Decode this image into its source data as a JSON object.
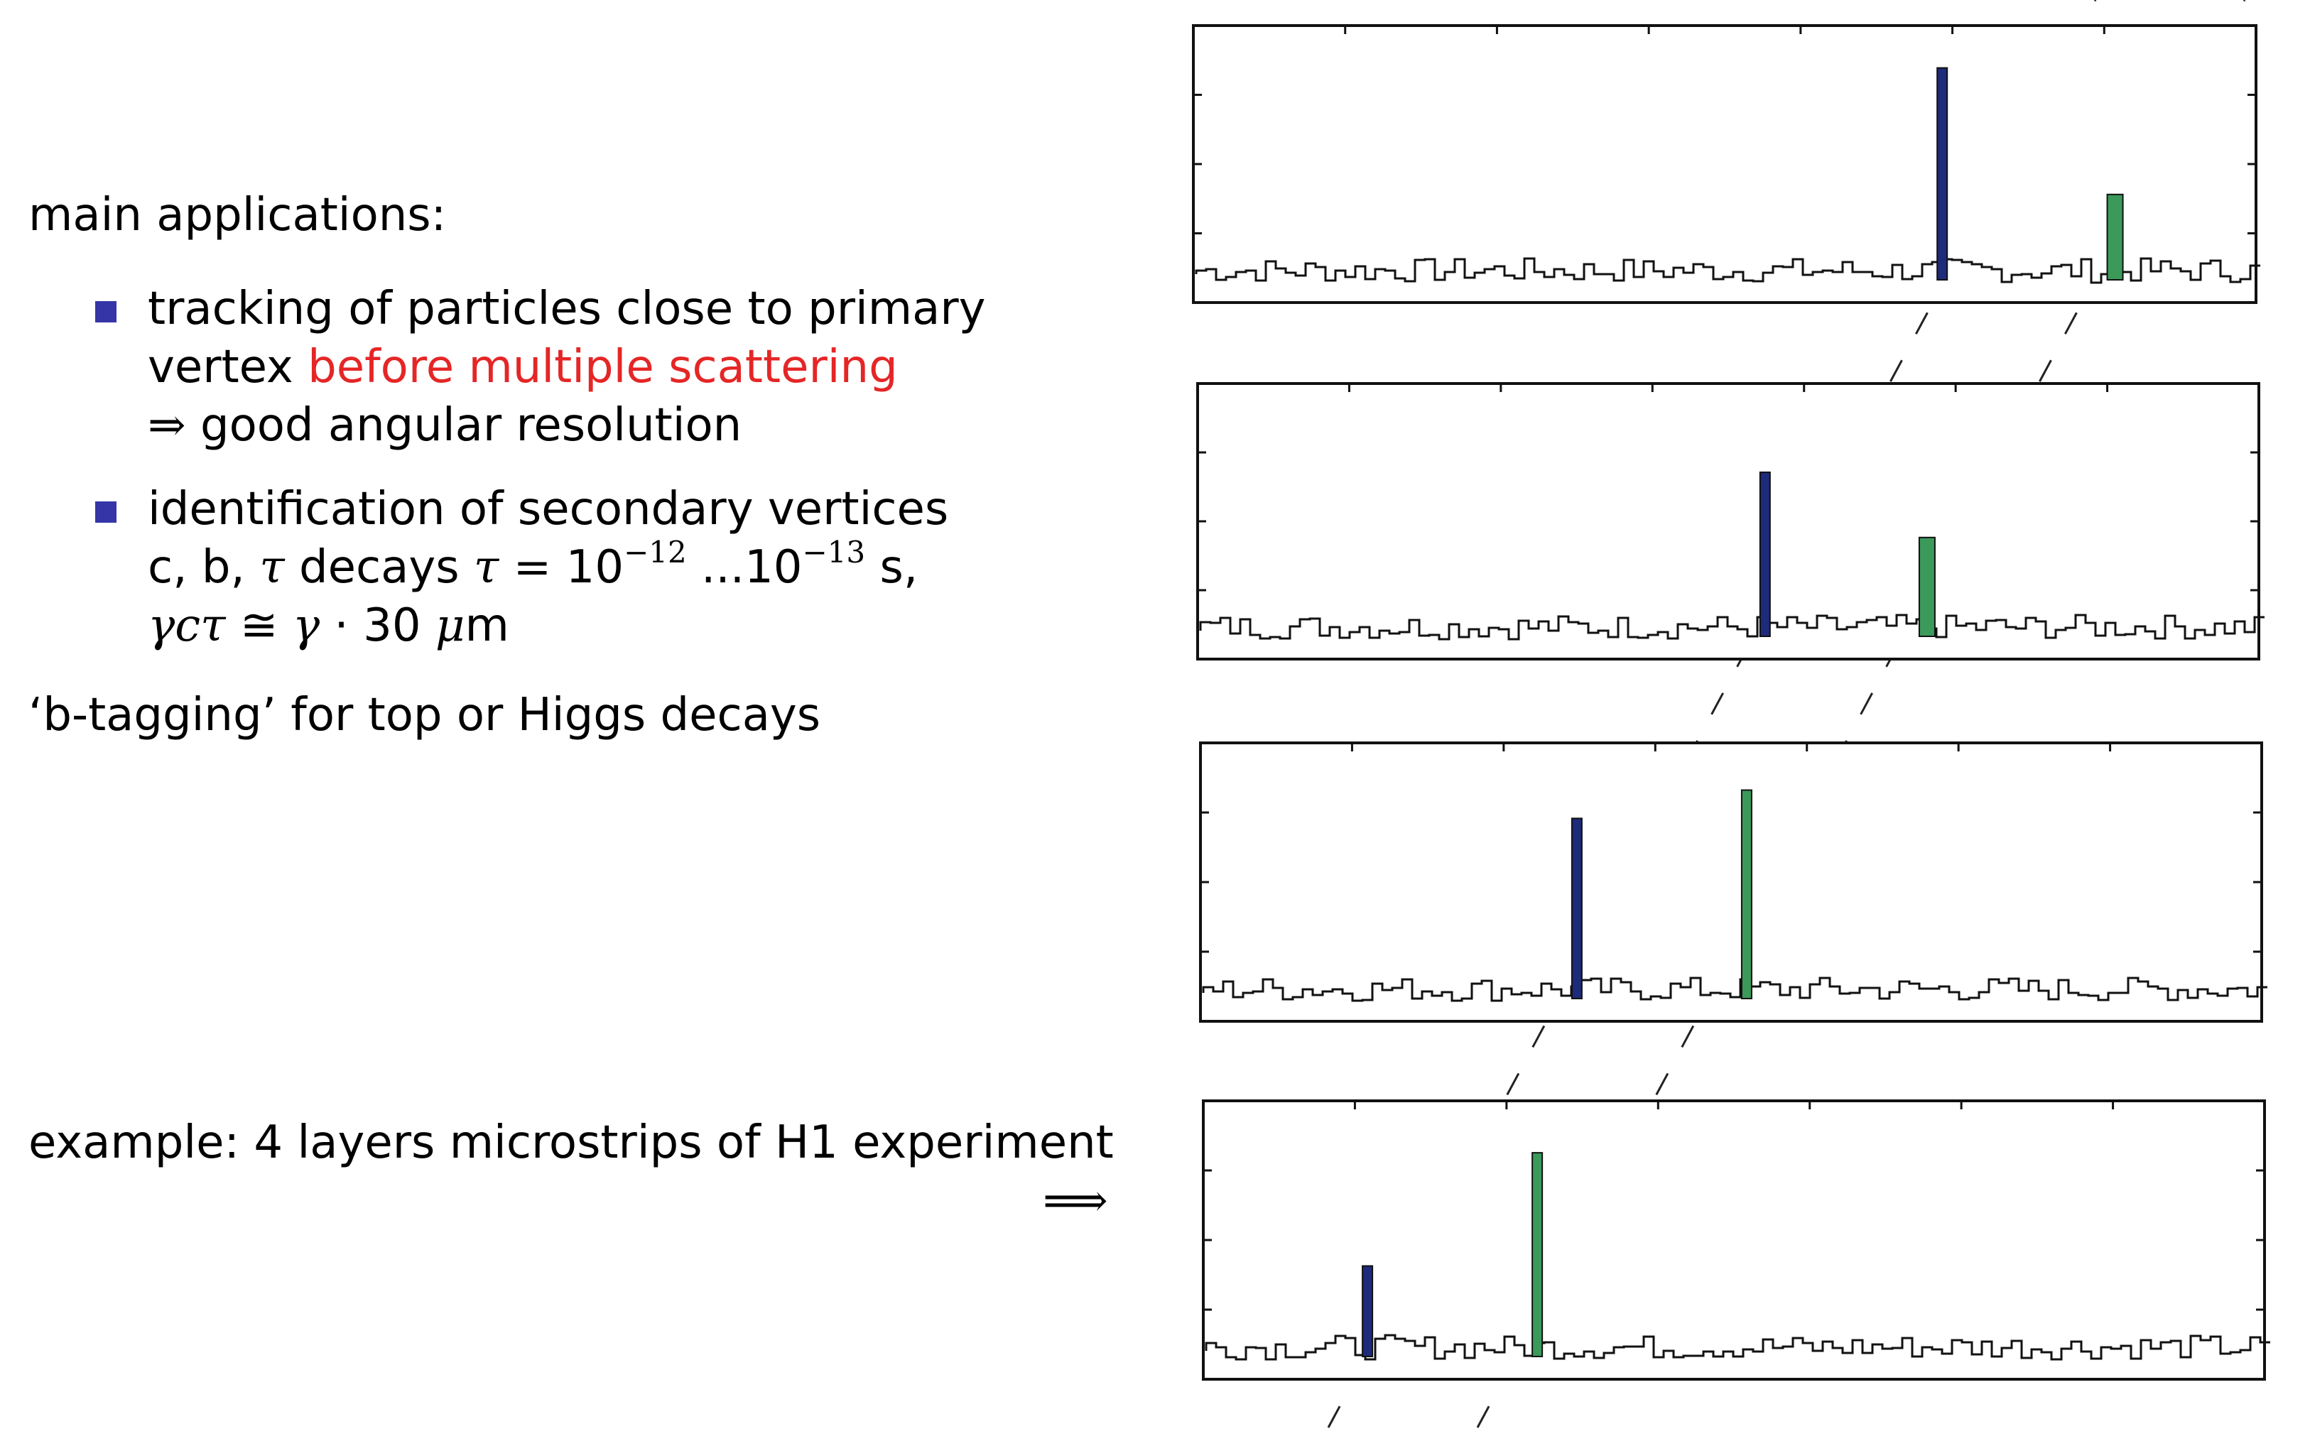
{
  "text": {
    "main_applications": "main applications:",
    "bullet1_line1": "tracking of particles close to primary",
    "bullet1_line2_prefix": "vertex ",
    "bullet1_line2_red": "before multiple scattering",
    "bullet1_line3_arrow": "⇒",
    "bullet1_line3": "good angular resolution",
    "bullet2_line1": "identification of secondary vertices",
    "bullet2_line2_prefix": "c, b, ",
    "tau_symbol": "τ",
    "bullet2_decays": "decays",
    "equals": "=",
    "ten": "10",
    "exp1": "−12",
    "ellipsis": "...",
    "exp2": "−13",
    "unit_s": "s,",
    "gamma_c_tau": "γcτ",
    "approx_eq": "≅",
    "gamma": "γ",
    "dot_30": "· 30",
    "mu": "μ",
    "unit_m": "m",
    "btagging": "‘b-tagging’ for top or Higgs decays",
    "example": "example: 4 layers microstrips of H1 experiment",
    "example_arrow": "⟹"
  },
  "colors": {
    "bullet": "#3535a8",
    "highlight": "#e52626",
    "track_blue": "#1e2a7a",
    "track_green": "#3b9a5a"
  },
  "figure": {
    "description_icon": "microstrip-hit-display",
    "layers": [
      {
        "name": "layer-1",
        "blue_strip": 0.7,
        "blue_height": 0.88,
        "green_strip": 0.86,
        "green_height": 0.34
      },
      {
        "name": "layer-2",
        "blue_strip": 0.53,
        "blue_height": 0.68,
        "green_strip": 0.68,
        "green_height": 0.4
      },
      {
        "name": "layer-3",
        "blue_strip": 0.35,
        "blue_height": 0.74,
        "green_strip": 0.51,
        "green_height": 0.86
      },
      {
        "name": "layer-4",
        "blue_strip": 0.15,
        "blue_height": 0.36,
        "green_strip": 0.31,
        "green_height": 0.84
      }
    ]
  }
}
